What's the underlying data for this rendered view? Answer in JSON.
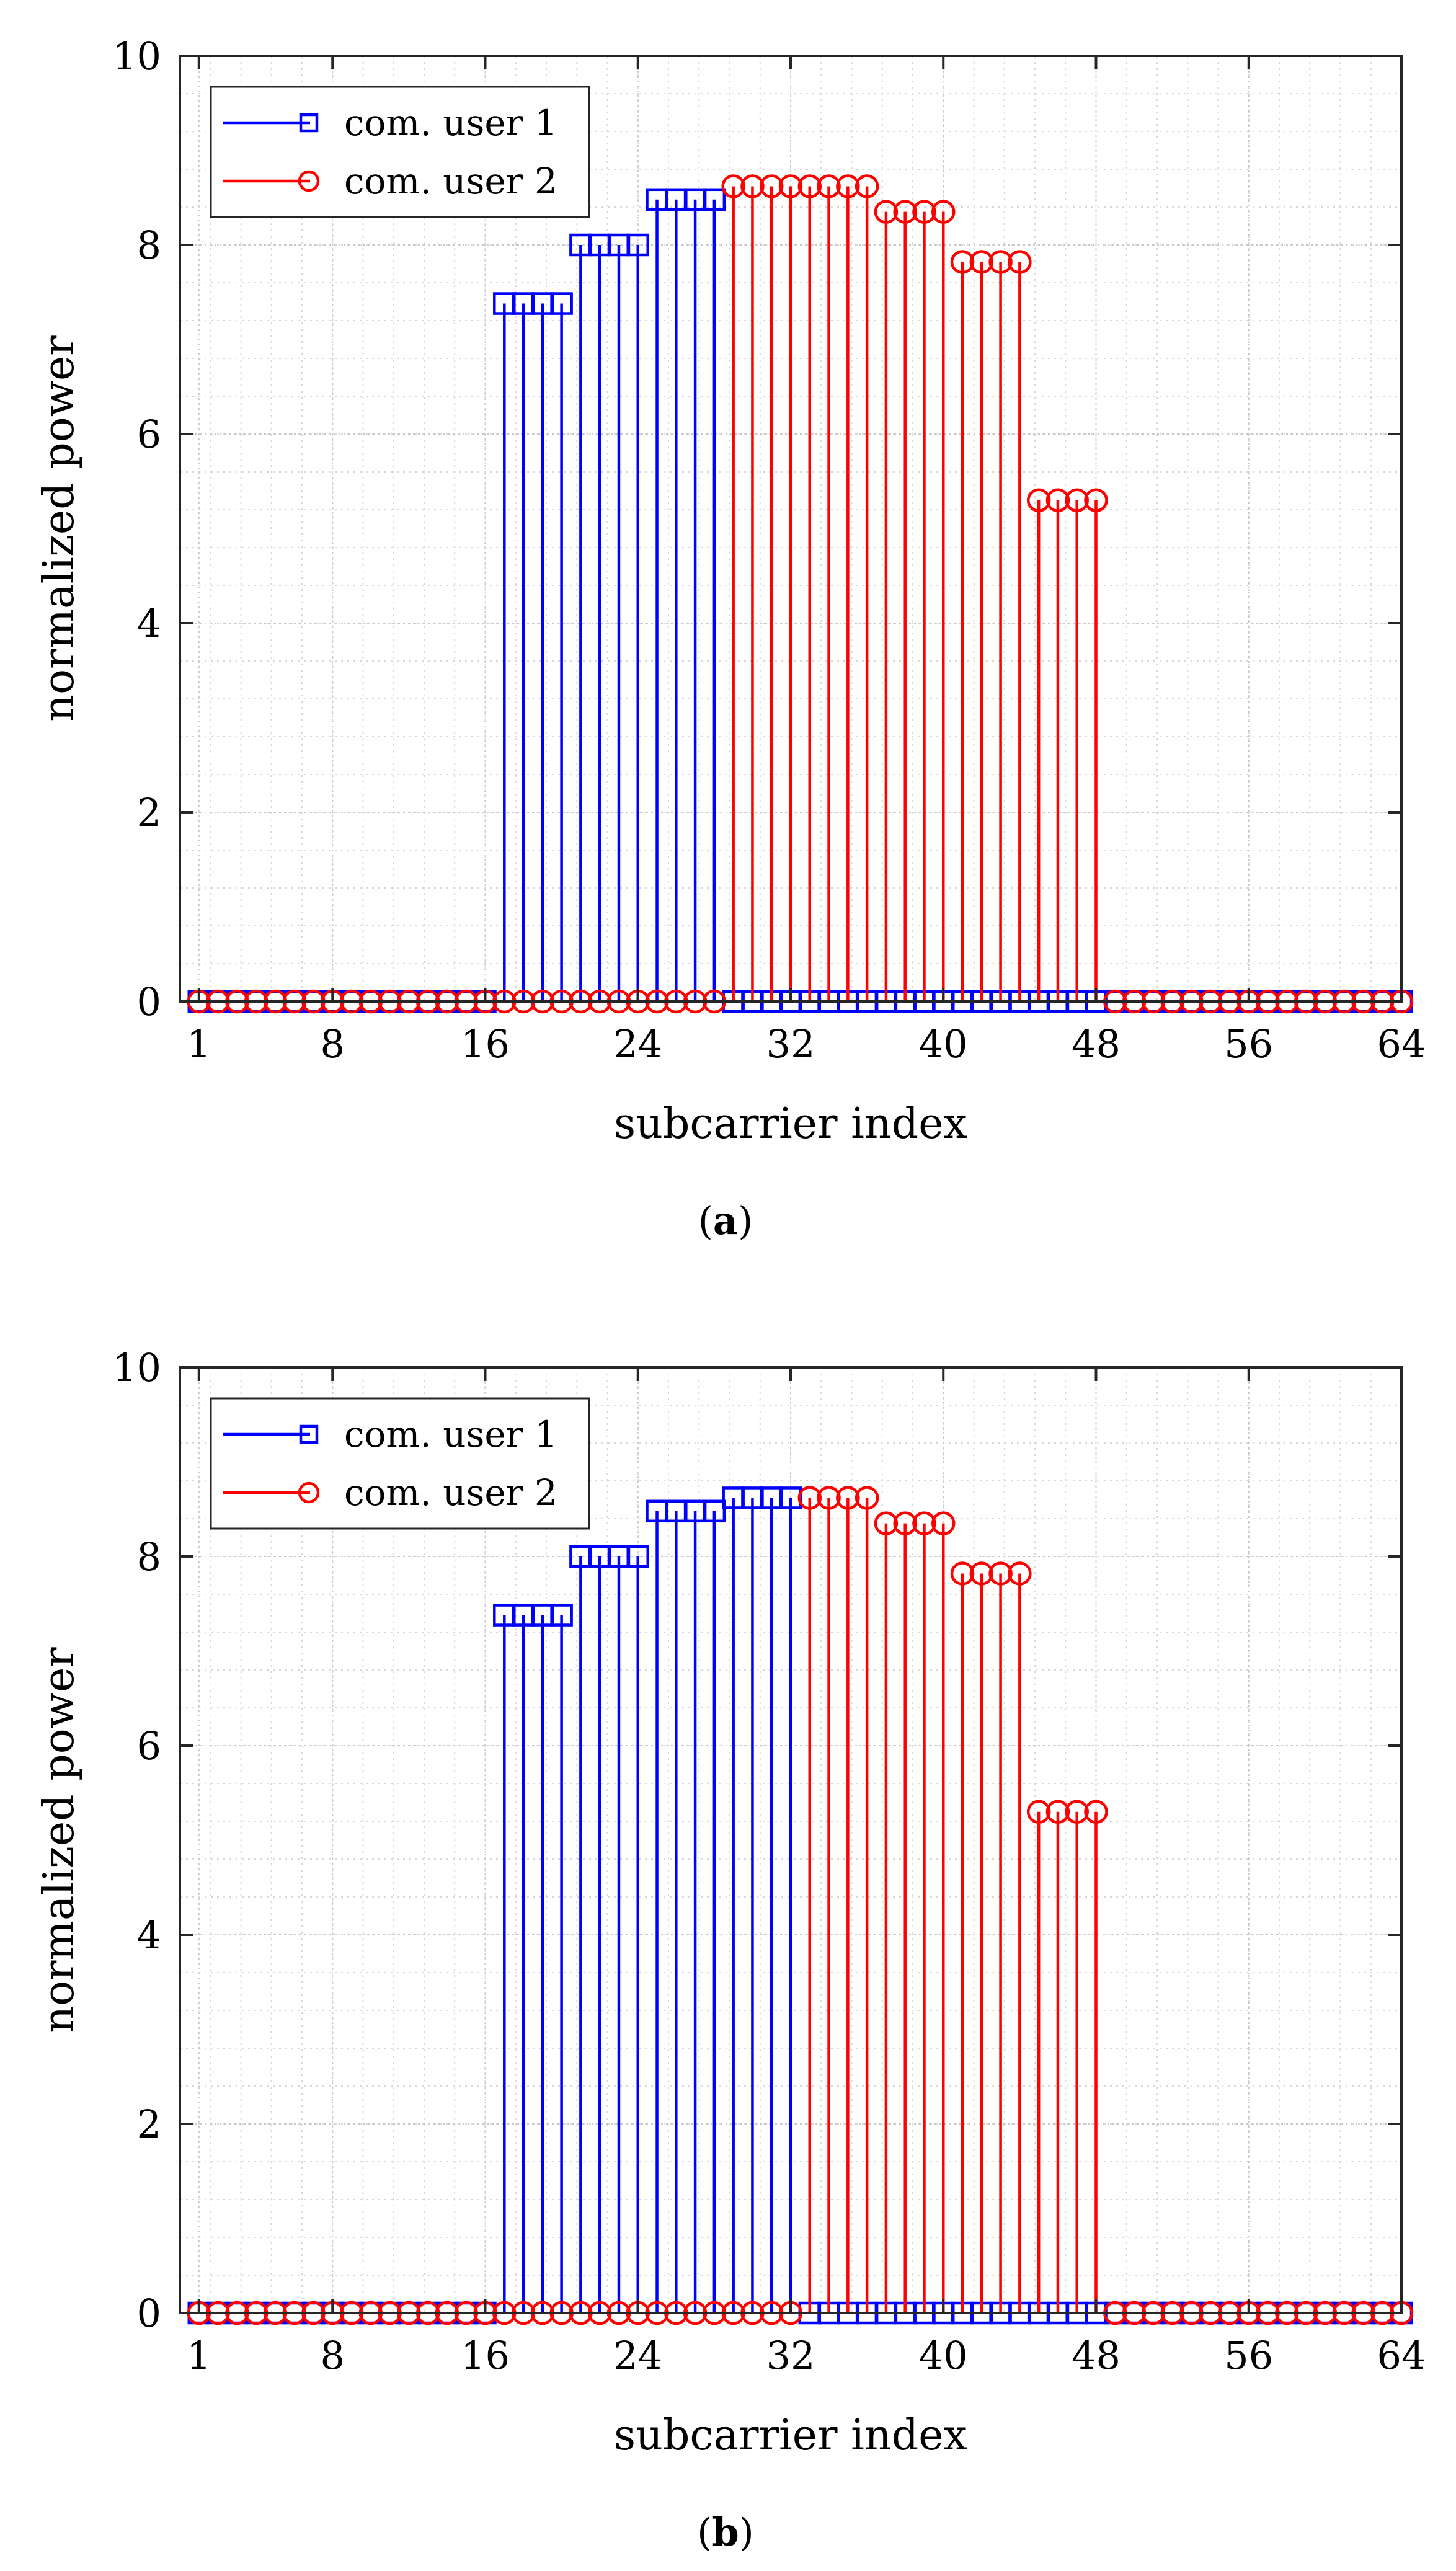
{
  "figure": {
    "panels": [
      {
        "caption_prefix": "(",
        "caption_label": "a",
        "caption_suffix": ")"
      },
      {
        "caption_prefix": "(",
        "caption_label": "b",
        "caption_suffix": ")"
      }
    ]
  },
  "chart_data": [
    {
      "type": "stem",
      "title": "",
      "xlabel": "subcarrier index",
      "ylabel": "normalized power",
      "xlim": [
        0,
        64
      ],
      "ylim": [
        0,
        10
      ],
      "xticks": [
        1,
        8,
        16,
        24,
        32,
        40,
        48,
        56,
        64
      ],
      "yticks": [
        0,
        2,
        4,
        6,
        8,
        10
      ],
      "grid": true,
      "legend_position": "top-left",
      "series": [
        {
          "name": "com. user 1",
          "color": "#0000ff",
          "marker": "square",
          "x": [
            1,
            2,
            3,
            4,
            5,
            6,
            7,
            8,
            9,
            10,
            11,
            12,
            13,
            14,
            15,
            16,
            17,
            18,
            19,
            20,
            21,
            22,
            23,
            24,
            25,
            26,
            27,
            28,
            29,
            30,
            31,
            32,
            33,
            34,
            35,
            36,
            37,
            38,
            39,
            40,
            41,
            42,
            43,
            44,
            45,
            46,
            47,
            48,
            49,
            50,
            51,
            52,
            53,
            54,
            55,
            56,
            57,
            58,
            59,
            60,
            61,
            62,
            63,
            64
          ],
          "values": [
            0,
            0,
            0,
            0,
            0,
            0,
            0,
            0,
            0,
            0,
            0,
            0,
            0,
            0,
            0,
            0,
            7.38,
            7.38,
            7.38,
            7.38,
            8.0,
            8.0,
            8.0,
            8.0,
            8.48,
            8.48,
            8.48,
            8.48,
            0,
            0,
            0,
            0,
            0,
            0,
            0,
            0,
            0,
            0,
            0,
            0,
            0,
            0,
            0,
            0,
            0,
            0,
            0,
            0,
            0,
            0,
            0,
            0,
            0,
            0,
            0,
            0,
            0,
            0,
            0,
            0,
            0,
            0,
            0,
            0
          ]
        },
        {
          "name": "com. user 2",
          "color": "#ff0000",
          "marker": "circle",
          "x": [
            1,
            2,
            3,
            4,
            5,
            6,
            7,
            8,
            9,
            10,
            11,
            12,
            13,
            14,
            15,
            16,
            17,
            18,
            19,
            20,
            21,
            22,
            23,
            24,
            25,
            26,
            27,
            28,
            29,
            30,
            31,
            32,
            33,
            34,
            35,
            36,
            37,
            38,
            39,
            40,
            41,
            42,
            43,
            44,
            45,
            46,
            47,
            48,
            49,
            50,
            51,
            52,
            53,
            54,
            55,
            56,
            57,
            58,
            59,
            60,
            61,
            62,
            63,
            64
          ],
          "values": [
            0,
            0,
            0,
            0,
            0,
            0,
            0,
            0,
            0,
            0,
            0,
            0,
            0,
            0,
            0,
            0,
            0,
            0,
            0,
            0,
            0,
            0,
            0,
            0,
            0,
            0,
            0,
            0,
            8.62,
            8.62,
            8.62,
            8.62,
            8.62,
            8.62,
            8.62,
            8.62,
            8.35,
            8.35,
            8.35,
            8.35,
            7.82,
            7.82,
            7.82,
            7.82,
            5.3,
            5.3,
            5.3,
            5.3,
            0,
            0,
            0,
            0,
            0,
            0,
            0,
            0,
            0,
            0,
            0,
            0,
            0,
            0,
            0,
            0
          ]
        }
      ]
    },
    {
      "type": "stem",
      "title": "",
      "xlabel": "subcarrier index",
      "ylabel": "normalized power",
      "xlim": [
        0,
        64
      ],
      "ylim": [
        0,
        10
      ],
      "xticks": [
        1,
        8,
        16,
        24,
        32,
        40,
        48,
        56,
        64
      ],
      "yticks": [
        0,
        2,
        4,
        6,
        8,
        10
      ],
      "grid": true,
      "legend_position": "top-left",
      "series": [
        {
          "name": "com. user 1",
          "color": "#0000ff",
          "marker": "square",
          "x": [
            1,
            2,
            3,
            4,
            5,
            6,
            7,
            8,
            9,
            10,
            11,
            12,
            13,
            14,
            15,
            16,
            17,
            18,
            19,
            20,
            21,
            22,
            23,
            24,
            25,
            26,
            27,
            28,
            29,
            30,
            31,
            32,
            33,
            34,
            35,
            36,
            37,
            38,
            39,
            40,
            41,
            42,
            43,
            44,
            45,
            46,
            47,
            48,
            49,
            50,
            51,
            52,
            53,
            54,
            55,
            56,
            57,
            58,
            59,
            60,
            61,
            62,
            63,
            64
          ],
          "values": [
            0,
            0,
            0,
            0,
            0,
            0,
            0,
            0,
            0,
            0,
            0,
            0,
            0,
            0,
            0,
            0,
            7.38,
            7.38,
            7.38,
            7.38,
            8.0,
            8.0,
            8.0,
            8.0,
            8.48,
            8.48,
            8.48,
            8.48,
            8.62,
            8.62,
            8.62,
            8.62,
            0,
            0,
            0,
            0,
            0,
            0,
            0,
            0,
            0,
            0,
            0,
            0,
            0,
            0,
            0,
            0,
            0,
            0,
            0,
            0,
            0,
            0,
            0,
            0,
            0,
            0,
            0,
            0,
            0,
            0,
            0,
            0
          ]
        },
        {
          "name": "com. user 2",
          "color": "#ff0000",
          "marker": "circle",
          "x": [
            1,
            2,
            3,
            4,
            5,
            6,
            7,
            8,
            9,
            10,
            11,
            12,
            13,
            14,
            15,
            16,
            17,
            18,
            19,
            20,
            21,
            22,
            23,
            24,
            25,
            26,
            27,
            28,
            29,
            30,
            31,
            32,
            33,
            34,
            35,
            36,
            37,
            38,
            39,
            40,
            41,
            42,
            43,
            44,
            45,
            46,
            47,
            48,
            49,
            50,
            51,
            52,
            53,
            54,
            55,
            56,
            57,
            58,
            59,
            60,
            61,
            62,
            63,
            64
          ],
          "values": [
            0,
            0,
            0,
            0,
            0,
            0,
            0,
            0,
            0,
            0,
            0,
            0,
            0,
            0,
            0,
            0,
            0,
            0,
            0,
            0,
            0,
            0,
            0,
            0,
            0,
            0,
            0,
            0,
            0,
            0,
            0,
            0,
            8.62,
            8.62,
            8.62,
            8.62,
            8.35,
            8.35,
            8.35,
            8.35,
            7.82,
            7.82,
            7.82,
            7.82,
            5.3,
            5.3,
            5.3,
            5.3,
            0,
            0,
            0,
            0,
            0,
            0,
            0,
            0,
            0,
            0,
            0,
            0,
            0,
            0,
            0,
            0
          ]
        }
      ]
    }
  ]
}
